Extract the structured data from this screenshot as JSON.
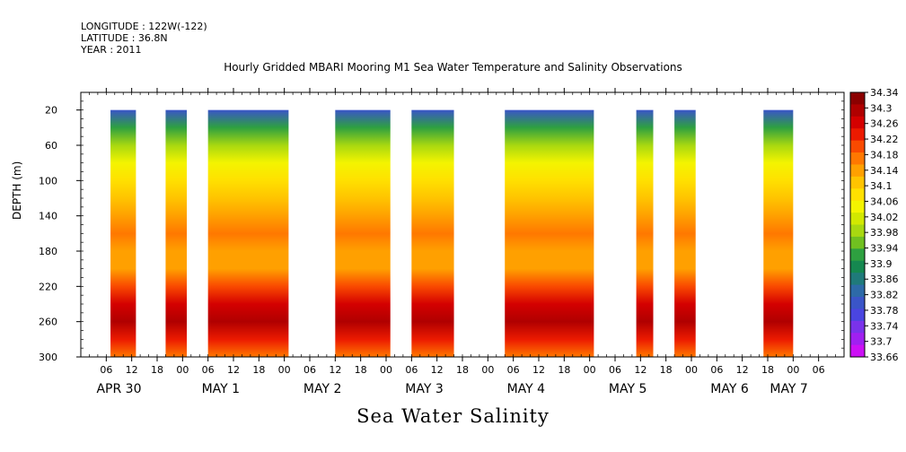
{
  "header": {
    "longitude": "LONGITUDE : 122W(-122)",
    "latitude": "LATITUDE : 36.8N",
    "year": "YEAR : 2011"
  },
  "chart_data": {
    "type": "heatmap",
    "title": "Hourly Gridded MBARI Mooring M1 Sea Water Temperature and Salinity Observations",
    "bottom_title": "Sea Water Salinity",
    "ylabel": "DEPTH (m)",
    "xlim_hours": [
      0,
      180
    ],
    "ylim": [
      0,
      300
    ],
    "y_ticks": [
      20,
      60,
      100,
      140,
      180,
      220,
      260,
      300
    ],
    "x_hour_ticks": [
      "06",
      "12",
      "18",
      "00",
      "06",
      "12",
      "18",
      "00",
      "06",
      "12",
      "18",
      "00",
      "06",
      "12",
      "18",
      "00",
      "06",
      "12",
      "18",
      "00",
      "06",
      "12",
      "18",
      "00",
      "06",
      "12",
      "18",
      "00",
      "06"
    ],
    "day_labels": [
      {
        "label": "APR 30",
        "hour": 9
      },
      {
        "label": "MAY  1",
        "hour": 33
      },
      {
        "label": "MAY  2",
        "hour": 57
      },
      {
        "label": "MAY  3",
        "hour": 81
      },
      {
        "label": "MAY  4",
        "hour": 105
      },
      {
        "label": "MAY  5",
        "hour": 129
      },
      {
        "label": "MAY  6",
        "hour": 153
      },
      {
        "label": "MAY  7",
        "hour": 167
      }
    ],
    "data_segments_hours": [
      [
        7,
        13
      ],
      [
        20,
        25
      ],
      [
        30,
        49
      ],
      [
        60,
        73
      ],
      [
        78,
        88
      ],
      [
        100,
        121
      ],
      [
        131,
        135
      ],
      [
        140,
        145
      ],
      [
        161,
        168
      ]
    ],
    "depth_profile": [
      {
        "depth": 20,
        "value": 33.8
      },
      {
        "depth": 40,
        "value": 33.92
      },
      {
        "depth": 60,
        "value": 34.0
      },
      {
        "depth": 80,
        "value": 34.05
      },
      {
        "depth": 100,
        "value": 34.08
      },
      {
        "depth": 120,
        "value": 34.11
      },
      {
        "depth": 140,
        "value": 34.15
      },
      {
        "depth": 160,
        "value": 34.18
      },
      {
        "depth": 180,
        "value": 34.16
      },
      {
        "depth": 200,
        "value": 34.16
      },
      {
        "depth": 220,
        "value": 34.22
      },
      {
        "depth": 240,
        "value": 34.27
      },
      {
        "depth": 260,
        "value": 34.3
      },
      {
        "depth": 280,
        "value": 34.25
      },
      {
        "depth": 300,
        "value": 34.19
      }
    ],
    "colorbar": {
      "labels": [
        "34.34",
        "34.3",
        "34.26",
        "34.22",
        "34.18",
        "34.14",
        "34.1",
        "34.06",
        "34.02",
        "33.98",
        "33.94",
        "33.9",
        "33.86",
        "33.82",
        "33.78",
        "33.74",
        "33.7",
        "33.66"
      ],
      "colors": [
        "#8b0000",
        "#b00000",
        "#d40000",
        "#ec1a00",
        "#f94a00",
        "#ff7800",
        "#ffa000",
        "#ffc400",
        "#ffe000",
        "#f4f400",
        "#d2e800",
        "#a8d810",
        "#70c020",
        "#2ea040",
        "#158850",
        "#1f7a7a",
        "#2d6aa8",
        "#3a55c8",
        "#4a45e0",
        "#7a32ea",
        "#a020f0",
        "#cc10f5"
      ]
    }
  }
}
